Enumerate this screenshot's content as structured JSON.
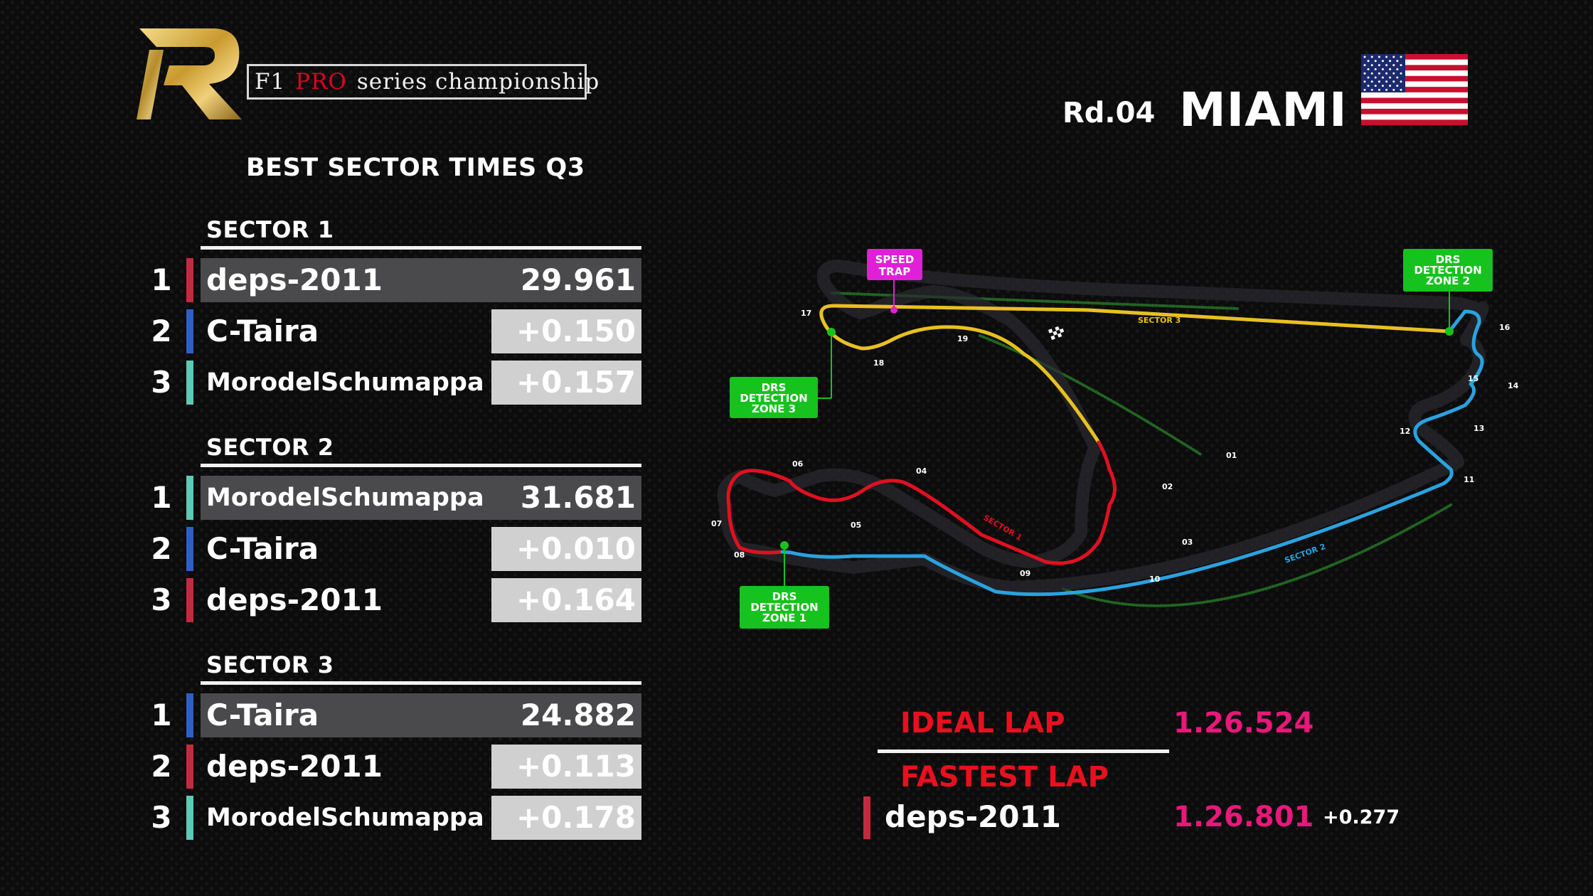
{
  "brand": {
    "logo_letter": "R",
    "text_f1": "F1",
    "text_pro": "PRO",
    "text_rest": "series championship"
  },
  "race": {
    "round": "Rd.04",
    "name": "MIAMI",
    "flag": "usa-flag-icon"
  },
  "title": "BEST SECTOR TIMES Q3",
  "sectors": [
    {
      "label": "SECTOR 1",
      "rows": [
        {
          "pos": "1",
          "driver": "deps-2011",
          "time": "29.961",
          "team_color": "#c42a3f"
        },
        {
          "pos": "2",
          "driver": "C-Taira",
          "time": "+0.150",
          "team_color": "#2e5fc4"
        },
        {
          "pos": "3",
          "driver": "MorodelSchumappa",
          "time": "+0.157",
          "team_color": "#5ec9b4"
        }
      ]
    },
    {
      "label": "SECTOR 2",
      "rows": [
        {
          "pos": "1",
          "driver": "MorodelSchumappa",
          "time": "31.681",
          "team_color": "#5ec9b4"
        },
        {
          "pos": "2",
          "driver": "C-Taira",
          "time": "+0.010",
          "team_color": "#2e5fc4"
        },
        {
          "pos": "3",
          "driver": "deps-2011",
          "time": "+0.164",
          "team_color": "#c42a3f"
        }
      ]
    },
    {
      "label": "SECTOR 3",
      "rows": [
        {
          "pos": "1",
          "driver": "C-Taira",
          "time": "24.882",
          "team_color": "#2e5fc4"
        },
        {
          "pos": "2",
          "driver": "deps-2011",
          "time": "+0.113",
          "team_color": "#c42a3f"
        },
        {
          "pos": "3",
          "driver": "MorodelSchumappa",
          "time": "+0.178",
          "team_color": "#5ec9b4"
        }
      ]
    }
  ],
  "track": {
    "speed_trap": [
      "SPEED",
      "TRAP"
    ],
    "drs1": [
      "DRS",
      "DETECTION",
      "ZONE 1"
    ],
    "drs2": [
      "DRS",
      "DETECTION",
      "ZONE 2"
    ],
    "drs3": [
      "DRS",
      "DETECTION",
      "ZONE 3"
    ],
    "sector_labels": [
      "SECTOR 1",
      "SECTOR 2",
      "SECTOR 3"
    ],
    "turns": [
      "01",
      "02",
      "03",
      "04",
      "05",
      "06",
      "07",
      "08",
      "09",
      "10",
      "11",
      "12",
      "13",
      "14",
      "15",
      "16",
      "17",
      "18",
      "19"
    ],
    "colors": {
      "sector1": "#e01020",
      "sector2": "#2aa2e0",
      "sector3": "#e8c020",
      "drs": "#16c21d",
      "speed_trap": "#e020d8"
    }
  },
  "laps": {
    "ideal_label": "IDEAL LAP",
    "ideal_time": "1.26.524",
    "fastest_label": "FASTEST LAP",
    "fastest_driver": "deps-2011",
    "fastest_time": "1.26.801",
    "fastest_gap": "+0.277",
    "fastest_team_color": "#c42a3f"
  },
  "colors": {
    "accent_red": "#e8101e",
    "accent_pink": "#e8187a",
    "highlight_row": "#4a4a4c",
    "gap_box": "#d0d0d0"
  }
}
